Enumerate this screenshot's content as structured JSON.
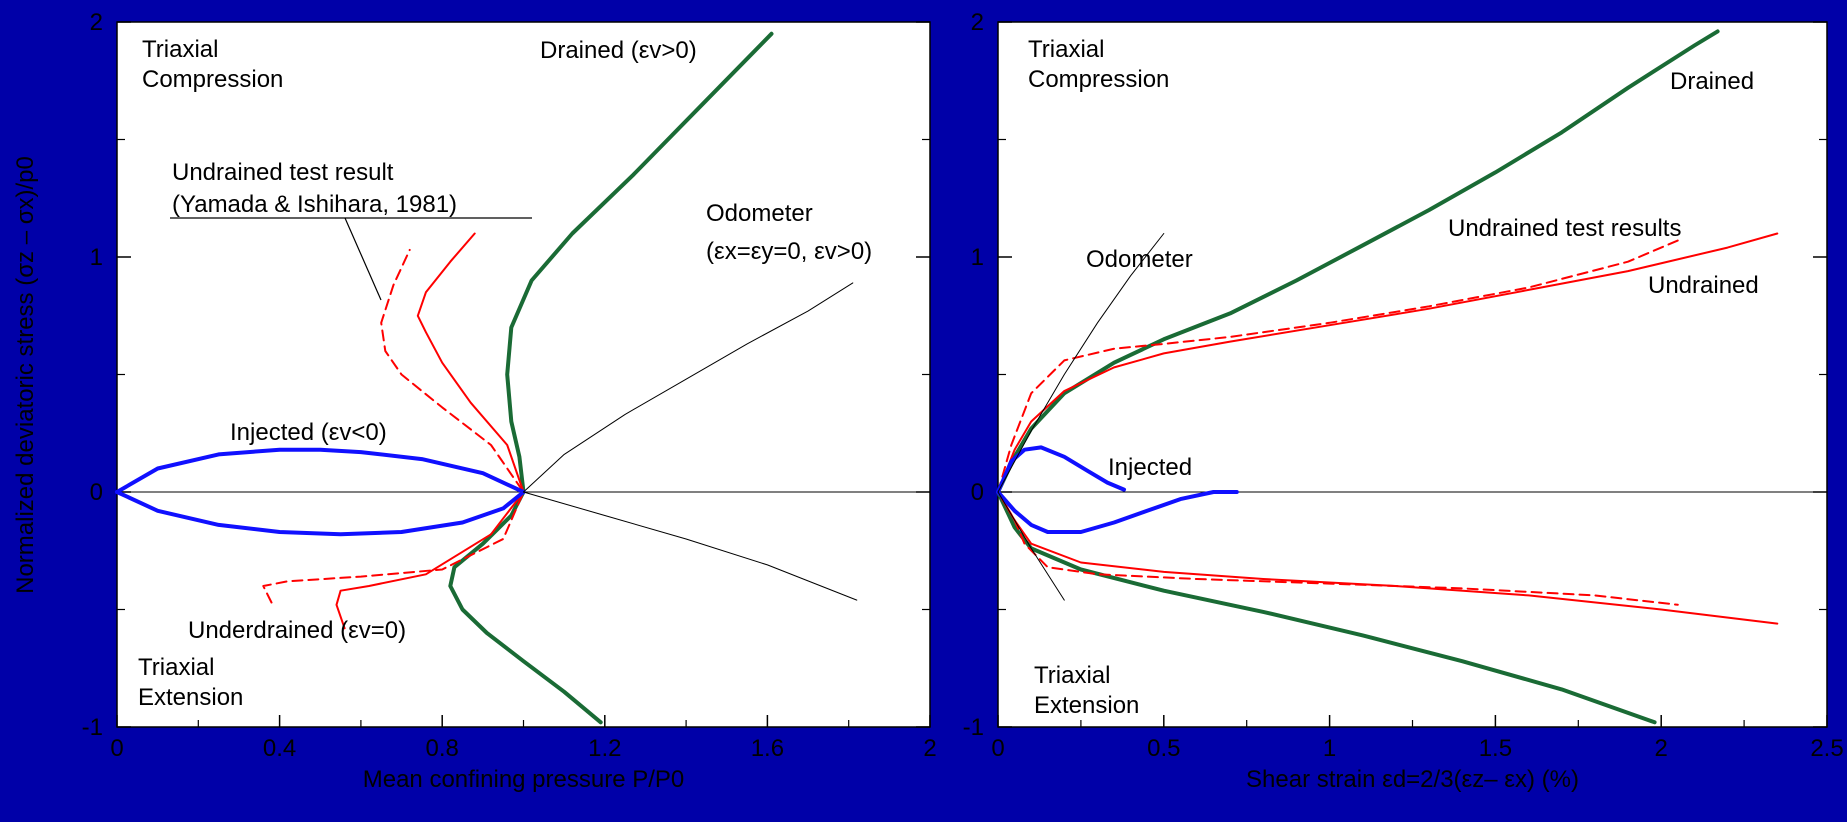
{
  "background_color": "#0000a8",
  "colors": {
    "drained": "#1a6b35",
    "undrained": "#ff0000",
    "injected": "#1010ff",
    "odometer": "#000000",
    "axis": "#000000"
  },
  "shared": {
    "ylabel": "Normalized deviatoric stress (σz – σx)/p0"
  },
  "chart_data": [
    {
      "type": "line",
      "xlabel": "Mean confining pressure P/P0",
      "ylabel": "Normalized deviatoric stress (σz – σx)/p0",
      "xlim": [
        0,
        2
      ],
      "ylim": [
        -1,
        2
      ],
      "x_ticks": [
        0,
        0.4,
        0.8,
        1.2,
        1.6,
        2
      ],
      "y_ticks": [
        -1,
        0,
        1,
        2
      ],
      "grid": false,
      "annotations": {
        "tc": [
          "Triaxial",
          "Compression"
        ],
        "te": [
          "Triaxial",
          "Extension"
        ],
        "drained": "Drained (εv>0)",
        "undrained_test": [
          "Undrained test result",
          "(Yamada & Ishihara, 1981)"
        ],
        "odometer": [
          "Odometer",
          "(εx=εy=0, εv>0)"
        ],
        "injected": "Injected (εv<0)",
        "underdrained": "Underdrained (εv=0)"
      },
      "series": [
        {
          "key": "drained",
          "style": "drained",
          "width": 4,
          "x": [
            1.19,
            1.1,
            1.0,
            0.91,
            0.85,
            0.82,
            0.83,
            0.9,
            0.97,
            1.0,
            0.99,
            0.97,
            0.96,
            0.97,
            1.02,
            1.12,
            1.27,
            1.44,
            1.61
          ],
          "y": [
            -0.98,
            -0.85,
            -0.72,
            -0.6,
            -0.5,
            -0.4,
            -0.32,
            -0.22,
            -0.1,
            0.0,
            0.15,
            0.3,
            0.5,
            0.7,
            0.9,
            1.1,
            1.35,
            1.65,
            1.95
          ]
        },
        {
          "key": "undrained_model",
          "style": "undrained",
          "width": 2,
          "x": [
            0.56,
            0.54,
            0.55,
            0.62,
            0.76,
            0.92,
            1.0,
            0.96,
            0.87,
            0.8,
            0.76,
            0.74,
            0.76,
            0.82,
            0.88
          ],
          "y": [
            -0.58,
            -0.48,
            -0.42,
            -0.4,
            -0.35,
            -0.18,
            0.0,
            0.2,
            0.38,
            0.55,
            0.68,
            0.75,
            0.85,
            0.98,
            1.1
          ]
        },
        {
          "key": "undrained_test",
          "style": "undrained",
          "width": 2,
          "dashed": true,
          "x": [
            0.38,
            0.36,
            0.42,
            0.6,
            0.8,
            0.95,
            1.0,
            0.92,
            0.8,
            0.7,
            0.66,
            0.65,
            0.68,
            0.72
          ],
          "y": [
            -0.47,
            -0.4,
            -0.38,
            -0.36,
            -0.33,
            -0.2,
            0.0,
            0.2,
            0.36,
            0.5,
            0.6,
            0.72,
            0.88,
            1.03
          ]
        },
        {
          "key": "injected_upper",
          "style": "injected",
          "width": 4,
          "x": [
            0,
            0.1,
            0.25,
            0.4,
            0.5,
            0.6,
            0.75,
            0.9,
            1.0
          ],
          "y": [
            0,
            0.1,
            0.16,
            0.18,
            0.18,
            0.17,
            0.14,
            0.08,
            0
          ]
        },
        {
          "key": "injected_lower",
          "style": "injected",
          "width": 4,
          "x": [
            0,
            0.1,
            0.25,
            0.4,
            0.55,
            0.7,
            0.85,
            0.95,
            1.0
          ],
          "y": [
            0,
            -0.08,
            -0.14,
            -0.17,
            -0.18,
            -0.17,
            -0.13,
            -0.07,
            0
          ]
        },
        {
          "key": "odometer_upper",
          "style": "odometer",
          "width": 1,
          "x": [
            1.0,
            1.1,
            1.25,
            1.4,
            1.55,
            1.7,
            1.81
          ],
          "y": [
            0,
            0.16,
            0.33,
            0.48,
            0.63,
            0.77,
            0.89
          ]
        },
        {
          "key": "odometer_lower",
          "style": "odometer",
          "width": 1,
          "x": [
            1.0,
            1.2,
            1.4,
            1.6,
            1.82
          ],
          "y": [
            0,
            -0.1,
            -0.2,
            -0.31,
            -0.46
          ]
        }
      ]
    },
    {
      "type": "line",
      "xlabel": "Shear strain εd=2/3(εz– εx) (%)",
      "xlim": [
        0,
        2.5
      ],
      "ylim": [
        -1,
        2
      ],
      "x_ticks": [
        0,
        0.5,
        1,
        1.5,
        2,
        2.5
      ],
      "y_ticks": [
        -1,
        0,
        1,
        2
      ],
      "grid": false,
      "annotations": {
        "tc": [
          "Triaxial",
          "Compression"
        ],
        "te": [
          "Triaxial",
          "Extension"
        ],
        "drained": "Drained",
        "undrained_test": "Undrained test results",
        "undrained": "Undrained",
        "odometer": "Odometer",
        "injected": "Injected"
      },
      "series": [
        {
          "key": "drained_tc",
          "style": "drained",
          "width": 4,
          "x": [
            0,
            0.05,
            0.1,
            0.2,
            0.35,
            0.5,
            0.7,
            0.9,
            1.1,
            1.3,
            1.5,
            1.7,
            1.9,
            2.1,
            2.17
          ],
          "y": [
            0,
            0.15,
            0.27,
            0.42,
            0.55,
            0.65,
            0.76,
            0.9,
            1.05,
            1.2,
            1.36,
            1.53,
            1.72,
            1.9,
            1.96
          ]
        },
        {
          "key": "undrained_tc",
          "style": "undrained",
          "width": 2,
          "x": [
            0,
            0.05,
            0.1,
            0.2,
            0.35,
            0.5,
            0.7,
            1.0,
            1.3,
            1.6,
            1.9,
            2.2,
            2.35
          ],
          "y": [
            0,
            0.18,
            0.3,
            0.43,
            0.53,
            0.59,
            0.64,
            0.71,
            0.78,
            0.86,
            0.94,
            1.04,
            1.1
          ]
        },
        {
          "key": "undrained_test_tc",
          "style": "undrained",
          "width": 2,
          "dashed": true,
          "x": [
            0,
            0.04,
            0.1,
            0.2,
            0.35,
            0.5,
            0.7,
            1.0,
            1.3,
            1.6,
            1.9,
            2.05
          ],
          "y": [
            0,
            0.2,
            0.42,
            0.56,
            0.61,
            0.63,
            0.66,
            0.72,
            0.79,
            0.87,
            0.98,
            1.07
          ]
        },
        {
          "key": "drained_te",
          "style": "drained",
          "width": 4,
          "x": [
            0,
            0.05,
            0.1,
            0.25,
            0.5,
            0.8,
            1.1,
            1.4,
            1.7,
            1.98
          ],
          "y": [
            0,
            -0.15,
            -0.24,
            -0.33,
            -0.42,
            -0.51,
            -0.61,
            -0.72,
            -0.84,
            -0.98
          ]
        },
        {
          "key": "undrained_te",
          "style": "undrained",
          "width": 2,
          "x": [
            0,
            0.05,
            0.1,
            0.25,
            0.5,
            0.8,
            1.2,
            1.6,
            2.0,
            2.35
          ],
          "y": [
            0,
            -0.12,
            -0.22,
            -0.3,
            -0.34,
            -0.37,
            -0.4,
            -0.44,
            -0.5,
            -0.56
          ]
        },
        {
          "key": "undrained_test_te",
          "style": "undrained",
          "width": 2,
          "dashed": true,
          "x": [
            0,
            0.05,
            0.08,
            0.15,
            0.3,
            0.6,
            1.0,
            1.4,
            1.8,
            2.05
          ],
          "y": [
            0,
            -0.12,
            -0.22,
            -0.32,
            -0.35,
            -0.37,
            -0.39,
            -0.41,
            -0.44,
            -0.48
          ]
        },
        {
          "key": "injected_1",
          "style": "injected",
          "width": 4,
          "x": [
            0,
            0.04,
            0.08,
            0.13,
            0.2,
            0.27,
            0.33,
            0.38
          ],
          "y": [
            0,
            0.13,
            0.18,
            0.19,
            0.15,
            0.09,
            0.04,
            0.01
          ]
        },
        {
          "key": "injected_2",
          "style": "injected",
          "width": 4,
          "x": [
            0,
            0.05,
            0.1,
            0.15,
            0.25,
            0.35,
            0.45,
            0.55,
            0.65,
            0.72
          ],
          "y": [
            0,
            -0.08,
            -0.14,
            -0.17,
            -0.17,
            -0.13,
            -0.08,
            -0.03,
            0,
            0
          ]
        },
        {
          "key": "odometer_tc",
          "style": "odometer",
          "width": 1,
          "x": [
            0,
            0.1,
            0.2,
            0.3,
            0.4,
            0.5
          ],
          "y": [
            0,
            0.26,
            0.5,
            0.72,
            0.92,
            1.1
          ]
        },
        {
          "key": "odometer_te",
          "style": "odometer",
          "width": 1,
          "x": [
            0,
            0.1,
            0.2
          ],
          "y": [
            0,
            -0.24,
            -0.46
          ]
        }
      ]
    }
  ]
}
